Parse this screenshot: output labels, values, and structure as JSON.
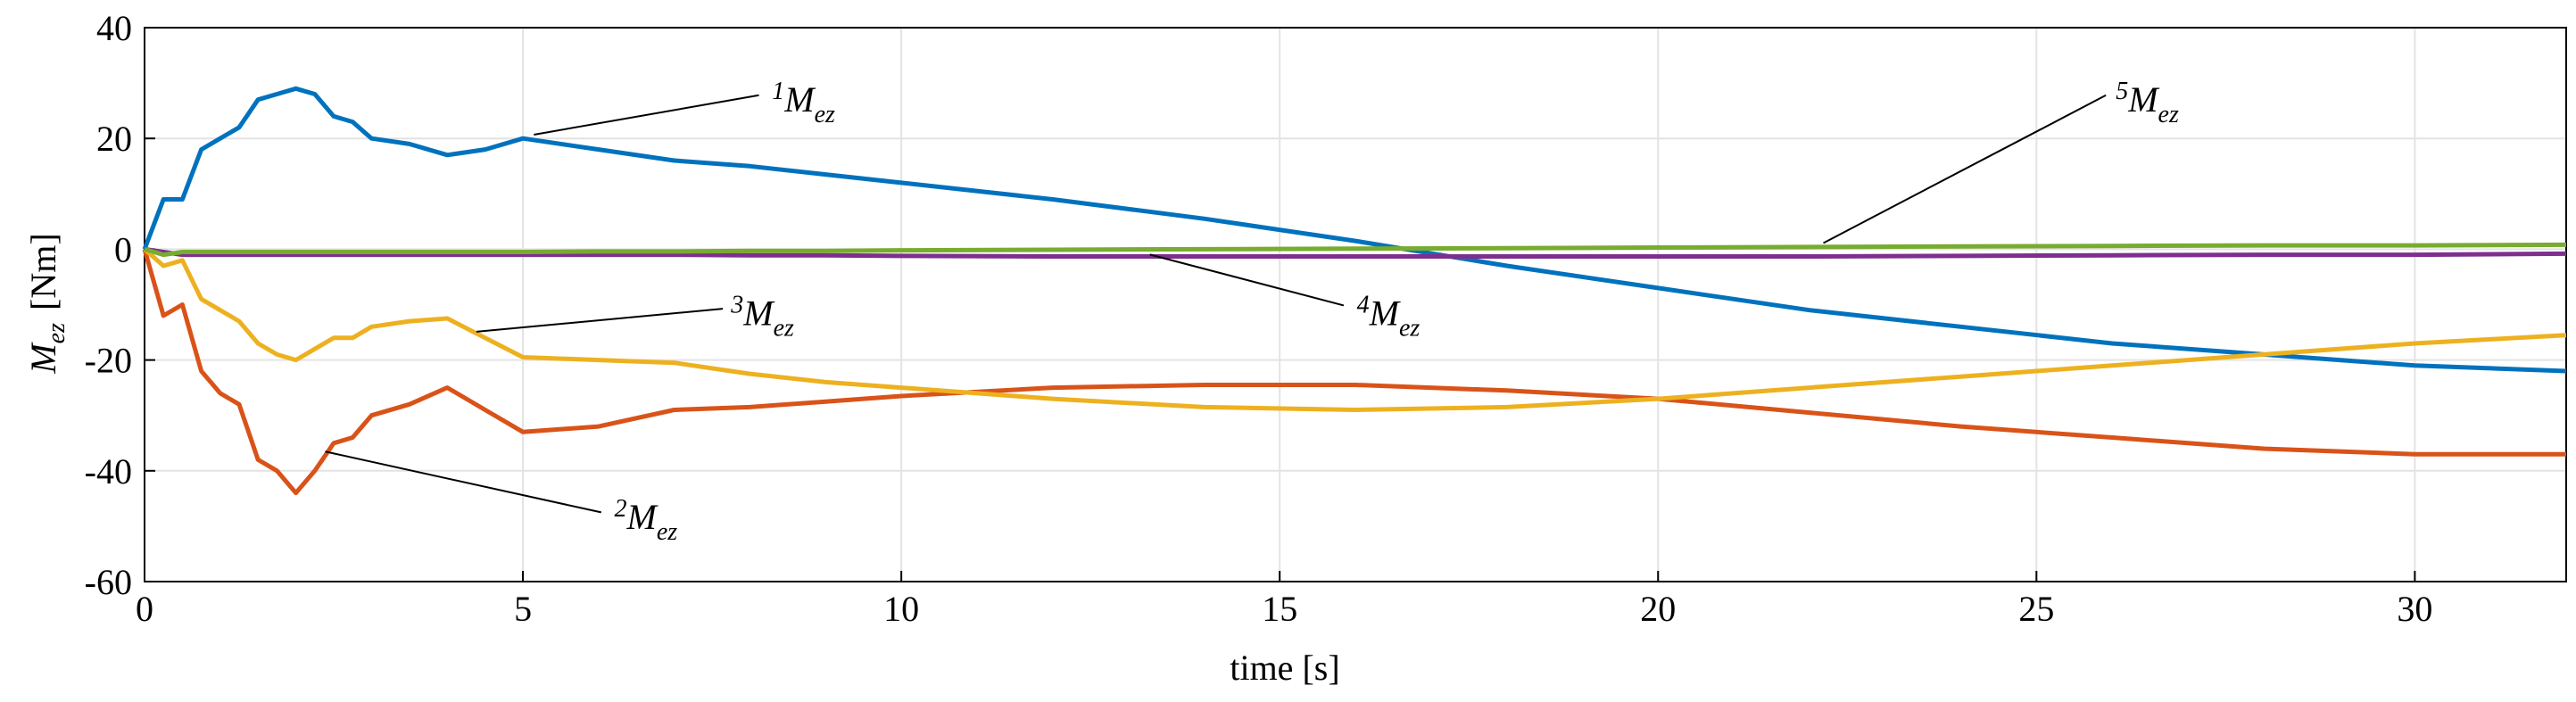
{
  "chart_data": {
    "type": "line",
    "x_label": "time [s]",
    "y_label": {
      "symbol": "M",
      "subscript": "ez",
      "unit": "[Nm]"
    },
    "x": [
      0,
      0.25,
      0.5,
      0.75,
      1,
      1.25,
      1.5,
      1.75,
      2,
      2.25,
      2.5,
      2.75,
      3,
      3.5,
      4,
      4.5,
      5,
      6,
      7,
      8,
      9,
      10,
      12,
      14,
      16,
      18,
      20,
      22,
      24,
      26,
      28,
      30,
      32
    ],
    "series": [
      {
        "name": "1",
        "color": "#0072bd",
        "values": [
          0,
          9,
          9,
          18,
          20,
          22,
          27,
          28,
          29,
          28,
          24,
          23,
          20,
          19,
          17,
          18,
          20,
          18,
          16,
          15,
          13.5,
          12,
          9,
          5.5,
          1.5,
          -3,
          -7,
          -11,
          -14,
          -17,
          -19,
          -21,
          -22
        ]
      },
      {
        "name": "2",
        "color": "#d95319",
        "values": [
          0,
          -12,
          -10,
          -22,
          -26,
          -28,
          -38,
          -40,
          -44,
          -40,
          -35,
          -34,
          -30,
          -28,
          -25,
          -29,
          -33,
          -32,
          -29,
          -28.5,
          -27.5,
          -26.5,
          -25,
          -24.5,
          -24.5,
          -25.5,
          -27,
          -29.5,
          -32,
          -34,
          -36,
          -37,
          -37
        ]
      },
      {
        "name": "3",
        "color": "#edb120",
        "values": [
          0,
          -3,
          -2,
          -9,
          -11,
          -13,
          -17,
          -19,
          -20,
          -18,
          -16,
          -16,
          -14,
          -13,
          -12.5,
          -16,
          -19.5,
          -20,
          -20.5,
          -22.5,
          -24,
          -25,
          -27,
          -28.5,
          -29,
          -28.5,
          -27,
          -25,
          -23,
          -21,
          -19,
          -17,
          -15.5
        ]
      },
      {
        "name": "4",
        "color": "#7e2f8e",
        "values": [
          0,
          -0.5,
          -1,
          -1,
          -1,
          -1,
          -1,
          -1,
          -1,
          -1,
          -1,
          -1,
          -1,
          -1,
          -1,
          -1,
          -1,
          -1,
          -1,
          -1.1,
          -1.1,
          -1.2,
          -1.3,
          -1.3,
          -1.3,
          -1.3,
          -1.3,
          -1.3,
          -1.2,
          -1.1,
          -1,
          -1,
          -0.8
        ]
      },
      {
        "name": "5",
        "color": "#77ac30",
        "values": [
          0,
          -1,
          -0.5,
          -0.5,
          -0.5,
          -0.5,
          -0.5,
          -0.5,
          -0.5,
          -0.5,
          -0.5,
          -0.5,
          -0.5,
          -0.5,
          -0.5,
          -0.5,
          -0.5,
          -0.4,
          -0.4,
          -0.3,
          -0.3,
          -0.2,
          -0.1,
          0,
          0.1,
          0.2,
          0.3,
          0.4,
          0.5,
          0.6,
          0.7,
          0.7,
          0.8
        ]
      }
    ],
    "annotations": [
      {
        "prefix": "1",
        "symbol": "M",
        "subscript": "ez"
      },
      {
        "prefix": "2",
        "symbol": "M",
        "subscript": "ez"
      },
      {
        "prefix": "3",
        "symbol": "M",
        "subscript": "ez"
      },
      {
        "prefix": "4",
        "symbol": "M",
        "subscript": "ez"
      },
      {
        "prefix": "5",
        "symbol": "M",
        "subscript": "ez"
      }
    ],
    "xlim": [
      0,
      32
    ],
    "xticks": [
      0,
      5,
      10,
      15,
      20,
      25,
      30
    ],
    "ylim": [
      -60,
      40
    ],
    "yticks": [
      -60,
      -40,
      -20,
      0,
      20,
      40
    ],
    "grid": true
  }
}
